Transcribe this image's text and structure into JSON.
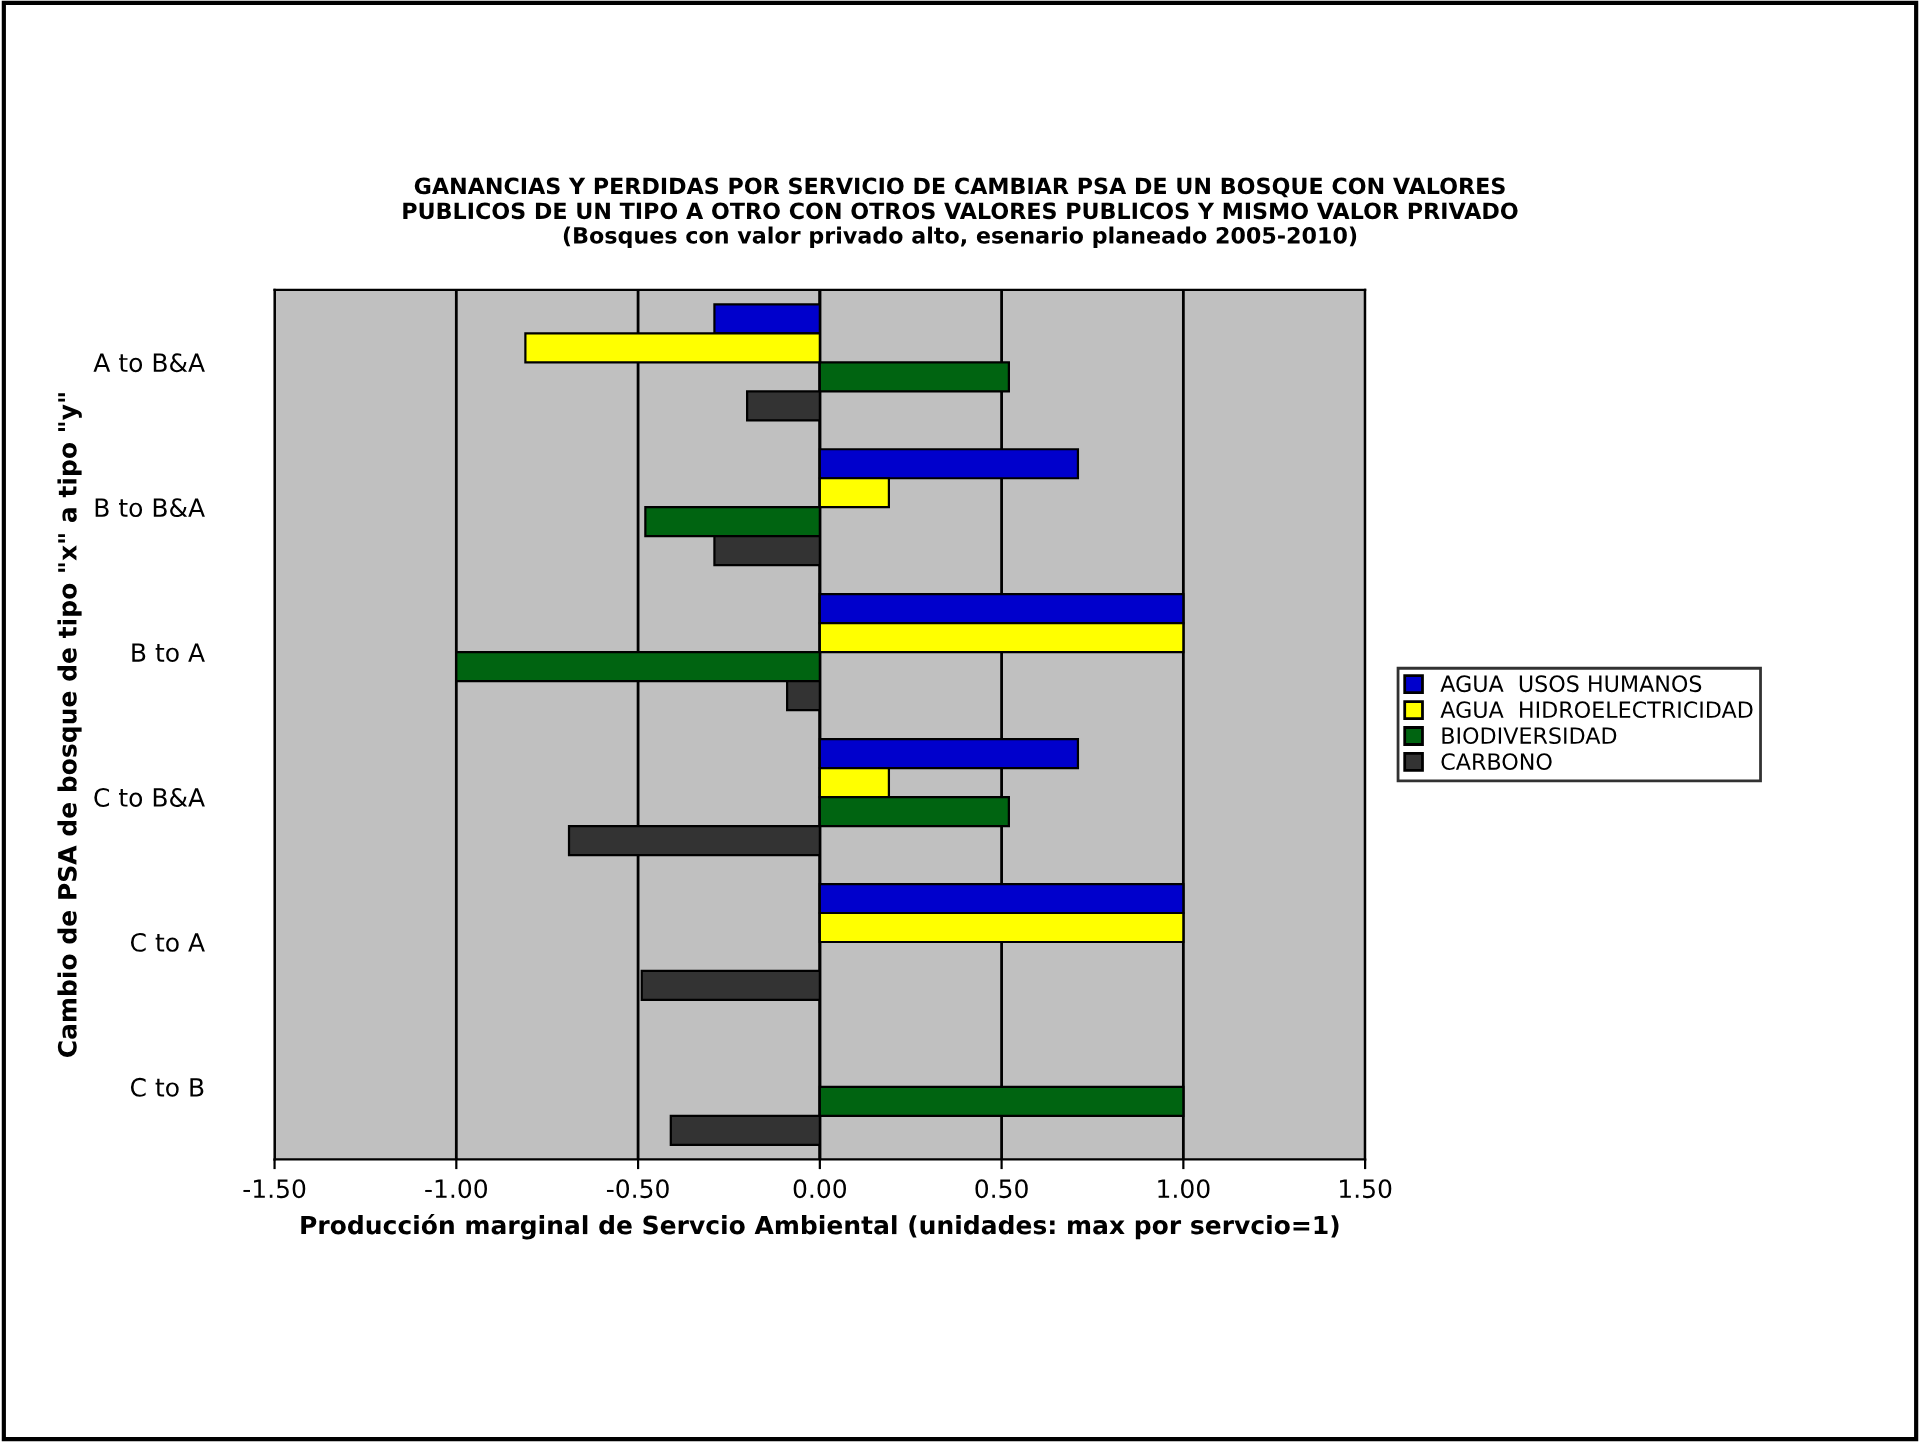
{
  "chart_data": {
    "type": "bar",
    "orientation": "horizontal",
    "title": "GANANCIAS Y PERDIDAS POR SERVICIO DE CAMBIAR PSA DE UN BOSQUE CON VALORES\nPUBLICOS DE UN TIPO A OTRO CON OTROS VALORES PUBLICOS Y MISMO VALOR PRIVADO",
    "subtitle": "(Bosques con valor privado alto, esenario planeado 2005-2010)",
    "xlabel": "Producción marginal de Servcio Ambiental (unidades: max por servcio=1)",
    "ylabel": "Cambio de PSA de bosque de tipo \"x\" a tipo \"y\"",
    "categories": [
      "A to B&A",
      "B to B&A",
      "B to A",
      "C to B&A",
      "C to A",
      "C to B"
    ],
    "series": [
      {
        "name": "AGUA  USOS HUMANOS",
        "color": "#0000cc",
        "values": [
          -0.29,
          0.71,
          1.0,
          0.71,
          1.0,
          null
        ]
      },
      {
        "name": "AGUA  HIDROELECTRICIDAD",
        "color": "#ffff00",
        "values": [
          -0.81,
          0.19,
          1.0,
          0.19,
          1.0,
          null
        ]
      },
      {
        "name": "BIODIVERSIDAD",
        "color": "#006411",
        "values": [
          0.52,
          -0.48,
          -1.0,
          0.52,
          null,
          1.0
        ]
      },
      {
        "name": "CARBONO",
        "color": "#333333",
        "values": [
          -0.2,
          -0.29,
          -0.09,
          -0.69,
          -0.49,
          -0.41
        ]
      }
    ],
    "xlim": [
      -1.5,
      1.5
    ],
    "xticks": [
      {
        "value": -1.5,
        "label": "-1.50"
      },
      {
        "value": -1.0,
        "label": "-1.00"
      },
      {
        "value": -0.5,
        "label": "-0.50"
      },
      {
        "value": 0.0,
        "label": "0.00"
      },
      {
        "value": 0.5,
        "label": "0.50"
      },
      {
        "value": 1.0,
        "label": "1.00"
      },
      {
        "value": 1.5,
        "label": "1.50"
      }
    ],
    "grid": "x",
    "legend": "right"
  }
}
